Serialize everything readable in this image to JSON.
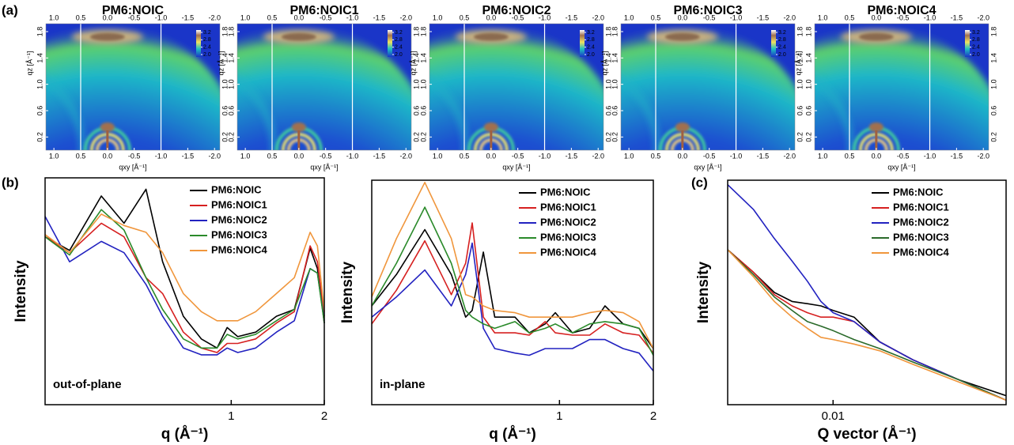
{
  "panel_labels": [
    "(a)",
    "(b)",
    "(c)"
  ],
  "chart_data": [
    {
      "type": "image",
      "title": "PM6:NOIC",
      "xlabel": "qxy [Å⁻¹]",
      "ylabel": "qz [Å⁻¹]",
      "xlim": [
        1.15,
        -2.1
      ],
      "ylim": [
        0,
        1.92
      ],
      "xticks": [
        {
          "value": 1,
          "label": "1.0"
        },
        0.5,
        {
          "value": 0,
          "label": "0.0"
        },
        -0.5,
        {
          "value": -1,
          "label": "-1.0"
        },
        -1.5,
        {
          "value": -2,
          "label": "-2.0"
        }
      ],
      "yticks": [
        0.2,
        0.6,
        {
          "value": 1,
          "label": "1.0"
        },
        1.4,
        1.8
      ],
      "vlines": [
        0.5,
        -1
      ],
      "colorbar_ticks": [
        {
          "value": 2,
          "label": "2.0"
        },
        2.4,
        2.8,
        3.2
      ]
    },
    {
      "type": "image",
      "title": "PM6:NOIC1",
      "xlabel": "qxy [Å⁻¹]",
      "ylabel": "qz [Å⁻¹]",
      "xlim": [
        1.15,
        -2.1
      ],
      "ylim": [
        0,
        1.92
      ],
      "xticks": [
        {
          "value": 1,
          "label": "1.0"
        },
        0.5,
        {
          "value": 0,
          "label": "0.0"
        },
        -0.5,
        {
          "value": -1,
          "label": "-1.0"
        },
        -1.5,
        {
          "value": -2,
          "label": "-2.0"
        }
      ],
      "yticks": [
        0.2,
        0.6,
        {
          "value": 1,
          "label": "1.0"
        },
        1.4,
        1.8
      ],
      "vlines": [
        0.5,
        -1
      ],
      "colorbar_ticks": [
        {
          "value": 2,
          "label": "2.0"
        },
        2.4,
        2.8,
        3.2
      ]
    },
    {
      "type": "image",
      "title": "PM6:NOIC2",
      "xlabel": "qxy [Å⁻¹]",
      "ylabel": "qz [Å⁻¹]",
      "xlim": [
        1.15,
        -2.1
      ],
      "ylim": [
        0,
        1.92
      ],
      "xticks": [
        {
          "value": 1,
          "label": "1.0"
        },
        0.5,
        {
          "value": 0,
          "label": "0.0"
        },
        -0.5,
        {
          "value": -1,
          "label": "-1.0"
        },
        -1.5,
        {
          "value": -2,
          "label": "-2.0"
        }
      ],
      "yticks": [
        0.2,
        0.6,
        {
          "value": 1,
          "label": "1.0"
        },
        1.4,
        1.8
      ],
      "vlines": [
        0.5,
        -1
      ],
      "colorbar_ticks": [
        {
          "value": 2,
          "label": "2.0"
        },
        2.4,
        2.8,
        3.2
      ]
    },
    {
      "type": "image",
      "title": "PM6:NOIC3",
      "xlabel": "qxy [Å⁻¹]",
      "ylabel": "qz [Å⁻¹]",
      "xlim": [
        1.15,
        -2.1
      ],
      "ylim": [
        0,
        1.92
      ],
      "xticks": [
        {
          "value": 1,
          "label": "1.0"
        },
        0.5,
        {
          "value": 0,
          "label": "0.0"
        },
        -0.5,
        {
          "value": -1,
          "label": "-1.0"
        },
        -1.5,
        {
          "value": -2,
          "label": "-2.0"
        }
      ],
      "yticks": [
        0.2,
        0.6,
        {
          "value": 1,
          "label": "1.0"
        },
        1.4,
        1.8
      ],
      "vlines": [
        0.5,
        -1
      ],
      "colorbar_ticks": [
        {
          "value": 2,
          "label": "2.0"
        },
        2.4,
        2.8,
        3.2
      ]
    },
    {
      "type": "image",
      "title": "PM6:NOIC4",
      "xlabel": "qxy [Å⁻¹]",
      "ylabel": "qz [Å⁻¹]",
      "xlim": [
        1.15,
        -2.1
      ],
      "ylim": [
        0,
        1.92
      ],
      "xticks": [
        {
          "value": 1,
          "label": "1.0"
        },
        0.5,
        {
          "value": 0,
          "label": "0.0"
        },
        -0.5,
        {
          "value": -1,
          "label": "-1.0"
        },
        -1.5,
        {
          "value": -2,
          "label": "-2.0"
        }
      ],
      "yticks": [
        0.2,
        0.6,
        {
          "value": 1,
          "label": "1.0"
        },
        1.4,
        1.8
      ],
      "vlines": [
        0.5,
        -1
      ],
      "colorbar_ticks": [
        {
          "value": 2,
          "label": "2.0"
        },
        2.4,
        2.8,
        3.2
      ]
    },
    {
      "type": "line",
      "xlabel": "q (Å⁻¹)",
      "ylabel": "Intensity",
      "annotation": "out-of-plane",
      "xscale": "log",
      "xlim": [
        0.25,
        2
      ],
      "xticks": [
        1,
        2
      ],
      "ylim": [
        0,
        100
      ],
      "legend": "upper right",
      "x": [
        0.25,
        0.3,
        0.38,
        0.45,
        0.53,
        0.6,
        0.7,
        0.8,
        0.9,
        0.97,
        1.05,
        1.2,
        1.4,
        1.6,
        1.8,
        1.9,
        2
      ],
      "series": [
        {
          "name": "PM6:NOIC",
          "color": "#000000",
          "values": [
            74,
            68,
            92,
            80,
            95,
            63,
            39,
            29,
            25,
            34,
            30,
            32,
            39,
            42,
            69,
            60,
            36
          ]
        },
        {
          "name": "PM6:NOIC1",
          "color": "#d62020",
          "values": [
            74,
            67,
            80,
            74,
            56,
            49,
            32,
            25,
            23,
            27,
            27,
            29,
            36,
            41,
            70,
            63,
            39
          ]
        },
        {
          "name": "PM6:NOIC2",
          "color": "#2222c0",
          "values": [
            83,
            63,
            72,
            67,
            53,
            39,
            25,
            22,
            22,
            25,
            23,
            25,
            32,
            37,
            60,
            58,
            37
          ]
        },
        {
          "name": "PM6:NOIC3",
          "color": "#2a8a2a",
          "values": [
            74,
            66,
            86,
            77,
            56,
            42,
            29,
            25,
            25,
            31,
            29,
            31,
            37,
            42,
            60,
            58,
            36
          ]
        },
        {
          "name": "PM6:NOIC4",
          "color": "#f0963c",
          "values": [
            75,
            67,
            84,
            79,
            76,
            67,
            49,
            41,
            37,
            37,
            37,
            41,
            49,
            56,
            76,
            70,
            41
          ]
        }
      ]
    },
    {
      "type": "line",
      "xlabel": "q (Å⁻¹)",
      "ylabel": "Intensity",
      "annotation": "in-plane",
      "xscale": "log",
      "xlim": [
        0.25,
        2
      ],
      "xticks": [
        1,
        2
      ],
      "ylim": [
        0,
        100
      ],
      "legend": "upper right",
      "x": [
        0.25,
        0.3,
        0.37,
        0.45,
        0.5,
        0.525,
        0.57,
        0.62,
        0.72,
        0.8,
        0.9,
        0.97,
        1.1,
        1.25,
        1.4,
        1.6,
        1.8,
        2
      ],
      "series": [
        {
          "name": "PM6:NOIC",
          "color": "#000000",
          "values": [
            44,
            58,
            78,
            58,
            39,
            42,
            68,
            39,
            39,
            32,
            36,
            41,
            32,
            34,
            44,
            36,
            34,
            25
          ]
        },
        {
          "name": "PM6:NOIC1",
          "color": "#d62020",
          "values": [
            36,
            51,
            73,
            49,
            63,
            81,
            39,
            32,
            32,
            31,
            37,
            32,
            31,
            31,
            36,
            32,
            31,
            23
          ]
        },
        {
          "name": "PM6:NOIC2",
          "color": "#2222c0",
          "values": [
            39,
            48,
            60,
            44,
            58,
            72,
            34,
            25,
            23,
            22,
            25,
            25,
            25,
            29,
            29,
            25,
            23,
            15
          ]
        },
        {
          "name": "PM6:NOIC3",
          "color": "#2a8a2a",
          "values": [
            44,
            63,
            88,
            63,
            42,
            39,
            36,
            34,
            37,
            32,
            34,
            36,
            32,
            36,
            37,
            36,
            34,
            22
          ]
        },
        {
          "name": "PM6:NOIC4",
          "color": "#f0963c",
          "values": [
            48,
            74,
            99,
            74,
            49,
            48,
            44,
            42,
            41,
            39,
            39,
            39,
            39,
            41,
            42,
            41,
            37,
            25
          ]
        }
      ]
    },
    {
      "type": "line",
      "xlabel": "Q vector (Å⁻¹)",
      "ylabel": "Intensity",
      "xscale": "log",
      "xlim": [
        0.004,
        0.045
      ],
      "xticks": [
        0.01
      ],
      "ylim": [
        0,
        100
      ],
      "legend": "upper right",
      "x": [
        0.004,
        0.005,
        0.006,
        0.007,
        0.008,
        0.009,
        0.01,
        0.012,
        0.015,
        0.02,
        0.03,
        0.045
      ],
      "series": [
        {
          "name": "PM6:NOIC",
          "color": "#000000",
          "values": [
            69,
            59,
            50,
            46,
            45,
            44,
            42,
            39,
            28,
            20,
            11,
            4
          ]
        },
        {
          "name": "PM6:NOIC1",
          "color": "#d62020",
          "values": [
            69,
            59,
            49,
            44,
            41,
            39,
            39,
            37,
            28,
            20,
            11,
            2
          ]
        },
        {
          "name": "PM6:NOIC2",
          "color": "#2222c0",
          "values": [
            98,
            87,
            74,
            64,
            55,
            46,
            41,
            37,
            28,
            20,
            11,
            2
          ]
        },
        {
          "name": "PM6:NOIC3",
          "color": "#2a6a2a",
          "values": [
            69,
            58,
            48,
            42,
            37,
            35,
            33,
            29,
            25,
            19,
            11,
            2
          ]
        },
        {
          "name": "PM6:NOIC4",
          "color": "#f0963c",
          "values": [
            69,
            57,
            46,
            39,
            34,
            30,
            29,
            27,
            24,
            18,
            10,
            2
          ]
        }
      ]
    }
  ]
}
